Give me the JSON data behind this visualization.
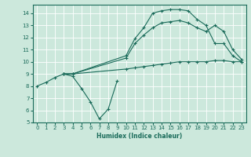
{
  "xlabel": "Humidex (Indice chaleur)",
  "bg_color": "#cce8dc",
  "line_color": "#1a6b5a",
  "xlim": [
    -0.5,
    23.5
  ],
  "ylim": [
    5,
    14.7
  ],
  "yticks": [
    5,
    6,
    7,
    8,
    9,
    10,
    11,
    12,
    13,
    14
  ],
  "xticks": [
    0,
    1,
    2,
    3,
    4,
    5,
    6,
    7,
    8,
    9,
    10,
    11,
    12,
    13,
    14,
    15,
    16,
    17,
    18,
    19,
    20,
    21,
    22,
    23
  ],
  "lines": [
    {
      "x": [
        0,
        1,
        2,
        3,
        4,
        5,
        6,
        7,
        8,
        9
      ],
      "y": [
        8.0,
        8.3,
        8.7,
        9.0,
        8.8,
        7.8,
        6.7,
        5.3,
        6.1,
        8.4
      ]
    },
    {
      "x": [
        3,
        4,
        10,
        11,
        12,
        13,
        14,
        15,
        16,
        17,
        18,
        19,
        20,
        21,
        22,
        23
      ],
      "y": [
        9.0,
        9.0,
        10.5,
        11.9,
        12.8,
        14.0,
        14.2,
        14.3,
        14.3,
        14.2,
        13.5,
        13.0,
        11.5,
        11.5,
        10.5,
        10.0
      ]
    },
    {
      "x": [
        3,
        4,
        10,
        11,
        12,
        13,
        14,
        15,
        16,
        17,
        18,
        19,
        20,
        21,
        22,
        23
      ],
      "y": [
        9.0,
        9.0,
        10.3,
        11.5,
        12.2,
        12.8,
        13.2,
        13.3,
        13.4,
        13.2,
        12.8,
        12.5,
        13.0,
        12.5,
        11.0,
        10.2
      ]
    },
    {
      "x": [
        3,
        4,
        10,
        11,
        12,
        13,
        14,
        15,
        16,
        17,
        18,
        19,
        20,
        21,
        22,
        23
      ],
      "y": [
        9.0,
        9.0,
        9.4,
        9.5,
        9.6,
        9.7,
        9.8,
        9.9,
        10.0,
        10.0,
        10.0,
        10.0,
        10.1,
        10.1,
        10.0,
        10.0
      ]
    }
  ]
}
